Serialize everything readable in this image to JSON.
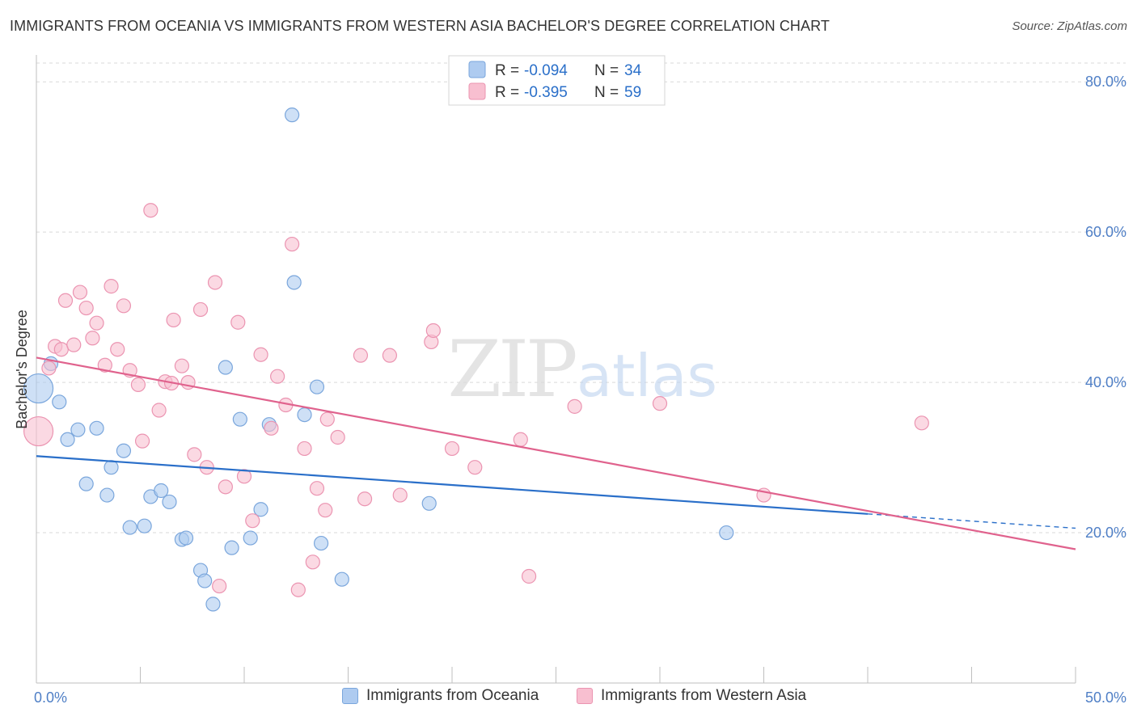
{
  "title": "IMMIGRANTS FROM OCEANIA VS IMMIGRANTS FROM WESTERN ASIA BACHELOR'S DEGREE CORRELATION CHART",
  "source": "Source: ZipAtlas.com",
  "watermark": {
    "zip": "ZIP",
    "atlas": "atlas"
  },
  "colors": {
    "blue_fill": "#aecbf0",
    "blue_stroke": "#7aa6dc",
    "blue_line": "#2a6fc9",
    "pink_fill": "#f8bfd0",
    "pink_stroke": "#eb94b1",
    "pink_line": "#e0628d",
    "axis_text": "#4f7fc6",
    "grid": "#d9d9d9"
  },
  "legend": {
    "rows": [
      {
        "r_label": "R = ",
        "r_value": "-0.094",
        "n_label": "N = ",
        "n_value": "34",
        "swatch": "blue"
      },
      {
        "r_label": "R = ",
        "r_value": "-0.395",
        "n_label": "N = ",
        "n_value": "59",
        "swatch": "pink"
      }
    ]
  },
  "chart_data": {
    "type": "scatter",
    "title": "IMMIGRANTS FROM OCEANIA VS IMMIGRANTS FROM WESTERN ASIA BACHELOR'S DEGREE CORRELATION CHART",
    "xlabel": "",
    "ylabel": "Bachelor's Degree",
    "xlim": [
      0,
      50
    ],
    "ylim": [
      0,
      82.5
    ],
    "x_tick_labels": [
      {
        "value": 0,
        "label": "0.0%"
      },
      {
        "value": 50,
        "label": "50.0%"
      }
    ],
    "y_tick_labels": [
      {
        "value": 20,
        "label": "20.0%"
      },
      {
        "value": 40,
        "label": "40.0%"
      },
      {
        "value": 60,
        "label": "60.0%"
      },
      {
        "value": 80,
        "label": "80.0%"
      }
    ],
    "y_grid": [
      20,
      40,
      60,
      80
    ],
    "legend_position": "top-center",
    "series": [
      {
        "name": "Immigrants from Oceania",
        "color": "blue",
        "trend": {
          "x0": 0,
          "y0": 30.2,
          "x1": 40,
          "y1": 22.5,
          "dash_to_x": 50,
          "dash_to_y": 20.6
        },
        "points": [
          {
            "x": 0.1,
            "y": 39.2,
            "big": true
          },
          {
            "x": 0.7,
            "y": 42.5
          },
          {
            "x": 1.1,
            "y": 37.4
          },
          {
            "x": 1.5,
            "y": 32.4
          },
          {
            "x": 2.0,
            "y": 33.7
          },
          {
            "x": 2.4,
            "y": 26.5
          },
          {
            "x": 2.9,
            "y": 33.9
          },
          {
            "x": 3.4,
            "y": 25.0
          },
          {
            "x": 3.6,
            "y": 28.7
          },
          {
            "x": 4.2,
            "y": 30.9
          },
          {
            "x": 4.5,
            "y": 20.7
          },
          {
            "x": 5.2,
            "y": 20.9
          },
          {
            "x": 5.5,
            "y": 24.8
          },
          {
            "x": 6.0,
            "y": 25.6
          },
          {
            "x": 6.4,
            "y": 24.1
          },
          {
            "x": 7.0,
            "y": 19.1
          },
          {
            "x": 7.2,
            "y": 19.3
          },
          {
            "x": 7.9,
            "y": 15.0
          },
          {
            "x": 8.1,
            "y": 13.6
          },
          {
            "x": 8.5,
            "y": 10.5
          },
          {
            "x": 9.1,
            "y": 42.0
          },
          {
            "x": 9.4,
            "y": 18.0
          },
          {
            "x": 9.8,
            "y": 35.1
          },
          {
            "x": 10.3,
            "y": 19.3
          },
          {
            "x": 10.8,
            "y": 23.1
          },
          {
            "x": 11.2,
            "y": 34.4
          },
          {
            "x": 12.3,
            "y": 75.6
          },
          {
            "x": 12.4,
            "y": 53.3
          },
          {
            "x": 12.9,
            "y": 35.7
          },
          {
            "x": 13.5,
            "y": 39.4
          },
          {
            "x": 13.7,
            "y": 18.6
          },
          {
            "x": 14.7,
            "y": 13.8
          },
          {
            "x": 18.9,
            "y": 23.9
          },
          {
            "x": 33.2,
            "y": 20.0
          }
        ]
      },
      {
        "name": "Immigrants from Western Asia",
        "color": "pink",
        "trend": {
          "x0": 0,
          "y0": 43.3,
          "x1": 50,
          "y1": 17.8
        },
        "points": [
          {
            "x": 0.1,
            "y": 33.5,
            "big": true
          },
          {
            "x": 0.6,
            "y": 41.9
          },
          {
            "x": 0.9,
            "y": 44.8
          },
          {
            "x": 1.2,
            "y": 44.4
          },
          {
            "x": 1.4,
            "y": 50.9
          },
          {
            "x": 1.8,
            "y": 45.0
          },
          {
            "x": 2.1,
            "y": 52.0
          },
          {
            "x": 2.4,
            "y": 49.9
          },
          {
            "x": 2.7,
            "y": 45.9
          },
          {
            "x": 2.9,
            "y": 47.9
          },
          {
            "x": 3.3,
            "y": 42.3
          },
          {
            "x": 3.6,
            "y": 52.8
          },
          {
            "x": 3.9,
            "y": 44.4
          },
          {
            "x": 4.2,
            "y": 50.2
          },
          {
            "x": 4.5,
            "y": 41.6
          },
          {
            "x": 4.9,
            "y": 39.7
          },
          {
            "x": 5.1,
            "y": 32.2
          },
          {
            "x": 5.5,
            "y": 62.9
          },
          {
            "x": 5.9,
            "y": 36.3
          },
          {
            "x": 6.2,
            "y": 40.1
          },
          {
            "x": 6.5,
            "y": 39.9
          },
          {
            "x": 6.6,
            "y": 48.3
          },
          {
            "x": 7.0,
            "y": 42.2
          },
          {
            "x": 7.3,
            "y": 40.0
          },
          {
            "x": 7.6,
            "y": 30.4
          },
          {
            "x": 7.9,
            "y": 49.7
          },
          {
            "x": 8.2,
            "y": 28.7
          },
          {
            "x": 8.6,
            "y": 53.3
          },
          {
            "x": 8.8,
            "y": 12.9
          },
          {
            "x": 9.1,
            "y": 26.1
          },
          {
            "x": 9.7,
            "y": 48.0
          },
          {
            "x": 10.0,
            "y": 27.5
          },
          {
            "x": 10.4,
            "y": 21.6
          },
          {
            "x": 10.8,
            "y": 43.7
          },
          {
            "x": 11.3,
            "y": 33.9
          },
          {
            "x": 11.6,
            "y": 40.8
          },
          {
            "x": 12.0,
            "y": 37.0
          },
          {
            "x": 12.3,
            "y": 58.4
          },
          {
            "x": 12.6,
            "y": 12.4
          },
          {
            "x": 12.9,
            "y": 31.2
          },
          {
            "x": 13.3,
            "y": 16.1
          },
          {
            "x": 13.5,
            "y": 25.9
          },
          {
            "x": 13.9,
            "y": 23.0
          },
          {
            "x": 14.0,
            "y": 35.1
          },
          {
            "x": 14.5,
            "y": 32.7
          },
          {
            "x": 15.6,
            "y": 43.6
          },
          {
            "x": 15.8,
            "y": 24.5
          },
          {
            "x": 17.0,
            "y": 43.6
          },
          {
            "x": 17.5,
            "y": 25.0
          },
          {
            "x": 19.0,
            "y": 45.4
          },
          {
            "x": 19.1,
            "y": 46.9
          },
          {
            "x": 20.0,
            "y": 31.2
          },
          {
            "x": 21.1,
            "y": 28.7
          },
          {
            "x": 23.3,
            "y": 32.4
          },
          {
            "x": 23.7,
            "y": 14.2
          },
          {
            "x": 25.9,
            "y": 36.8
          },
          {
            "x": 30.0,
            "y": 37.2
          },
          {
            "x": 35.0,
            "y": 25.0
          },
          {
            "x": 42.6,
            "y": 34.6
          }
        ]
      }
    ]
  },
  "bottom_legend": [
    {
      "label": "Immigrants from Oceania",
      "swatch": "blue"
    },
    {
      "label": "Immigrants from Western Asia",
      "swatch": "pink"
    }
  ]
}
